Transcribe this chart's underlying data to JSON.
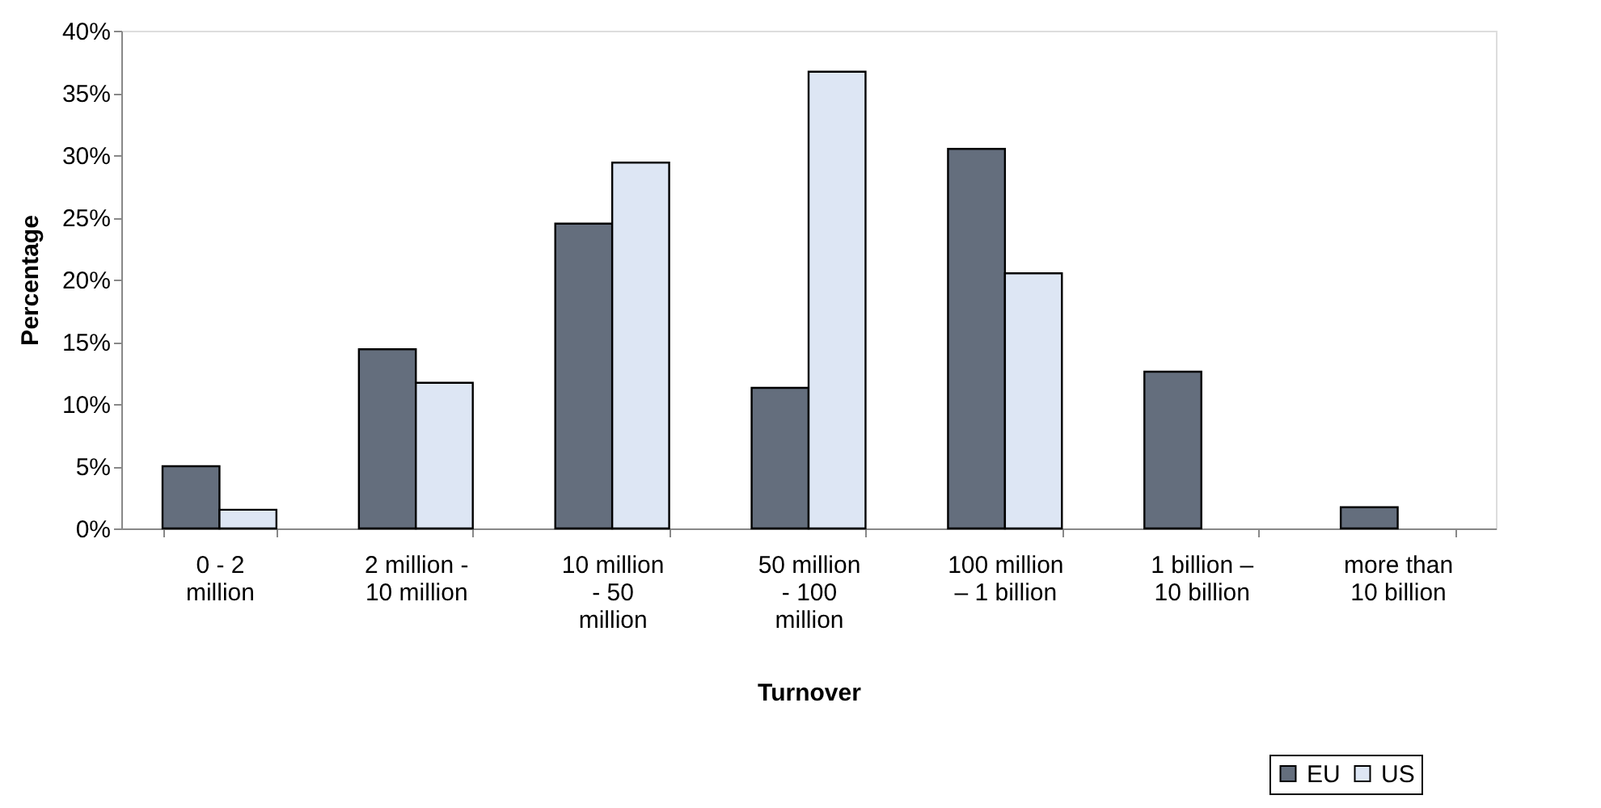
{
  "chart_data": {
    "type": "bar",
    "xlabel": "Turnover",
    "ylabel": "Percentage",
    "categories": [
      "0 - 2 million",
      "2 million - 10 million",
      "10 million - 50 million",
      "50 million - 100 million",
      "100 million – 1 billion",
      "1 billion – 10 billion",
      "more than 10 billion"
    ],
    "series": [
      {
        "name": "EU",
        "color": "#646e7d",
        "values": [
          5.0,
          14.4,
          24.5,
          11.3,
          30.5,
          12.6,
          1.7
        ]
      },
      {
        "name": "US",
        "color": "#dde6f4",
        "values": [
          1.5,
          11.7,
          29.4,
          36.7,
          20.5,
          null,
          null
        ]
      }
    ],
    "ylim": [
      0,
      40
    ],
    "yticks": [
      {
        "value": 0,
        "label": "0%"
      },
      {
        "value": 5,
        "label": "5%"
      },
      {
        "value": 10,
        "label": "10%"
      },
      {
        "value": 15,
        "label": "15%"
      },
      {
        "value": 20,
        "label": "20%"
      },
      {
        "value": 25,
        "label": "25%"
      },
      {
        "value": 30,
        "label": "30%"
      },
      {
        "value": 35,
        "label": "35%"
      },
      {
        "value": 40,
        "label": "40%"
      }
    ],
    "grid": false,
    "legend": "bottom right"
  }
}
